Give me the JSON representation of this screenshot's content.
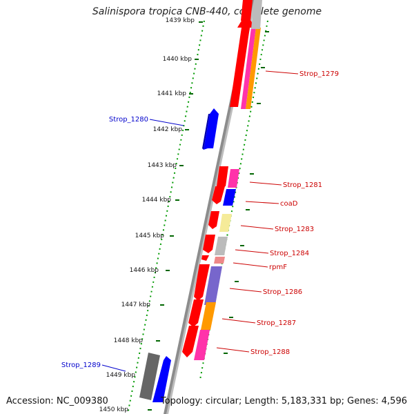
{
  "title": "Salinispora tropica CNB-440, complete genome",
  "footer": {
    "accession": "Accession: NC_009380",
    "summary": "Topology: circular; Length: 5,183,331 bp; Genes: 4,596"
  },
  "map": {
    "ticks": [
      "1439 kbp",
      "1440 kbp",
      "1441 kbp",
      "1442 kbp",
      "1443 kbp",
      "1444 kbp",
      "1445 kbp",
      "1446 kbp",
      "1447 kbp",
      "1448 kbp",
      "1449 kbp",
      "1450 kbp"
    ],
    "labels_right": [
      "Strop_1279",
      "Strop_1281",
      "coaD",
      "Strop_1283",
      "Strop_1284",
      "rpmF",
      "Strop_1286",
      "Strop_1287",
      "Strop_1288"
    ],
    "labels_left": [
      "Strop_1280",
      "Strop_1289"
    ]
  },
  "colors": {
    "cds": "#ff0000",
    "reverse_gene": "#0000ff",
    "backbone": "#888888",
    "tick": "#007700",
    "label_forward": "#cc0000",
    "label_reverse": "#0000cc"
  }
}
